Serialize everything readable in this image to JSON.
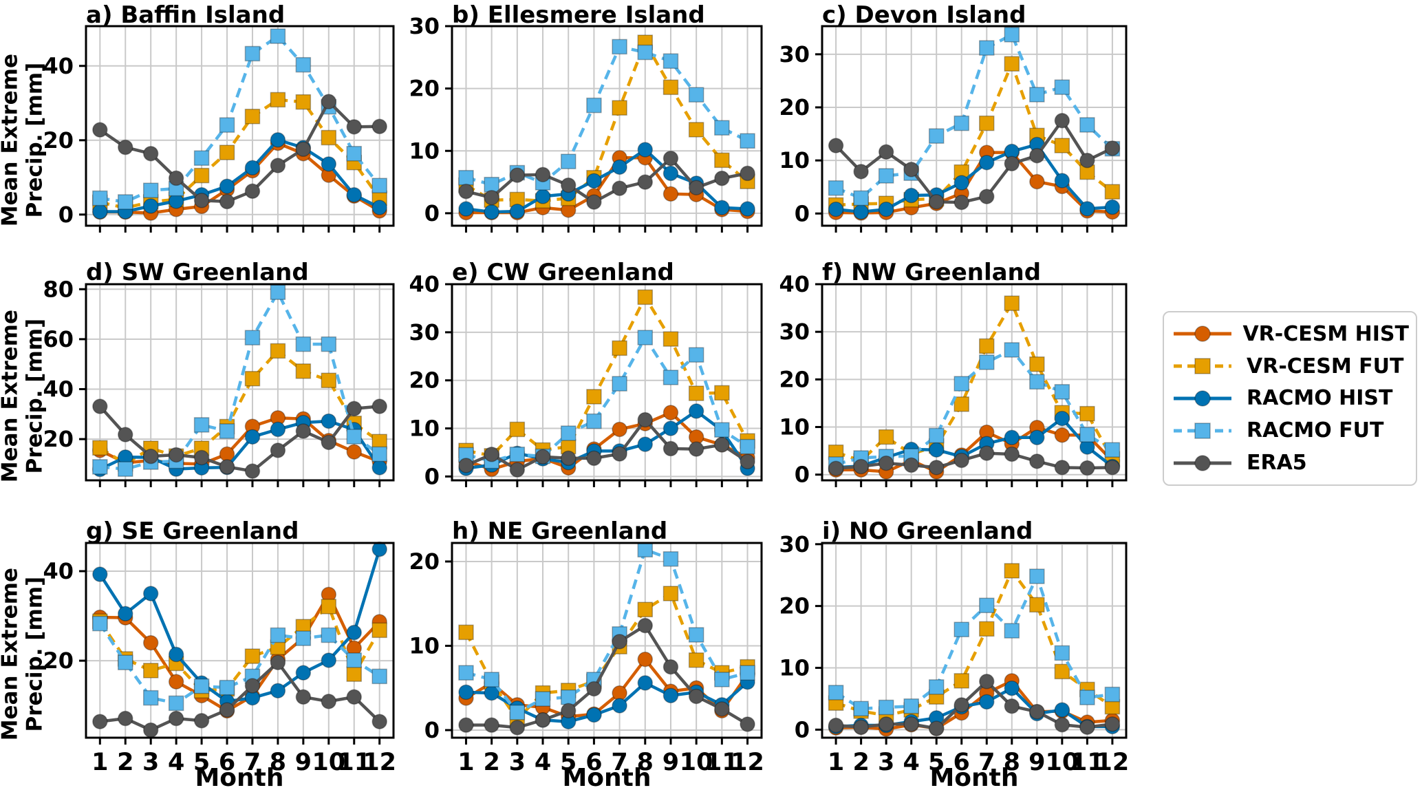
{
  "figure": {
    "ylabel": "Mean Extreme Precip. [mm]",
    "ylabel_line1": "Mean Extreme",
    "ylabel_line2": "Precip. [mm]",
    "xlabel": "Month",
    "months": [
      1,
      2,
      3,
      4,
      5,
      6,
      7,
      8,
      9,
      10,
      11,
      12
    ]
  },
  "series_meta": [
    {
      "name": "VR-CESM HIST",
      "color": "#D55E00",
      "style": "solid",
      "marker": "circle"
    },
    {
      "name": "VR-CESM FUT",
      "color": "#E69F00",
      "style": "dashed",
      "marker": "square"
    },
    {
      "name": "RACMO HIST",
      "color": "#0072B2",
      "style": "solid",
      "marker": "circle"
    },
    {
      "name": "RACMO FUT",
      "color": "#56B4E9",
      "style": "dashed",
      "marker": "square"
    },
    {
      "name": "ERA5",
      "color": "#545454",
      "style": "solid",
      "marker": "circle"
    }
  ],
  "chart_data": [
    {
      "type": "line",
      "title": "a) Baffin Island",
      "ylabel": "Mean Extreme Precip. [mm]",
      "xlabel": "",
      "categories": [
        1,
        2,
        3,
        4,
        5,
        6,
        7,
        8,
        9,
        10,
        11,
        12
      ],
      "ylim": [
        -3,
        50.7
      ],
      "yticks": [
        0,
        20,
        40
      ],
      "grid": true,
      "series": [
        {
          "name": "VR-CESM HIST",
          "values": [
            0.7,
            0.7,
            0.4,
            1.4,
            2.2,
            6.7,
            11.8,
            19.2,
            16.4,
            10.6,
            5.0,
            1.0
          ]
        },
        {
          "name": "VR-CESM FUT",
          "values": [
            3.3,
            1.8,
            3.4,
            4.1,
            10.5,
            16.7,
            26.4,
            30.9,
            30.3,
            20.7,
            14.0,
            4.4
          ]
        },
        {
          "name": "RACMO HIST",
          "values": [
            0.8,
            0.8,
            2.3,
            3.6,
            5.3,
            7.6,
            12.6,
            20.1,
            18.0,
            13.6,
            5.3,
            1.9
          ]
        },
        {
          "name": "RACMO FUT",
          "values": [
            4.4,
            3.4,
            6.5,
            7.0,
            15.2,
            24.1,
            43.3,
            48.0,
            40.3,
            29.0,
            16.4,
            7.8
          ]
        },
        {
          "name": "ERA5",
          "values": [
            22.8,
            18.1,
            16.4,
            9.8,
            3.8,
            3.5,
            6.3,
            13.2,
            17.6,
            30.4,
            23.6,
            23.7
          ]
        }
      ]
    },
    {
      "type": "line",
      "title": "b) Ellesmere Island",
      "ylabel": "",
      "xlabel": "",
      "categories": [
        1,
        2,
        3,
        4,
        5,
        6,
        7,
        8,
        9,
        10,
        11,
        12
      ],
      "ylim": [
        -2,
        30
      ],
      "yticks": [
        0,
        10,
        20,
        30
      ],
      "grid": true,
      "series": [
        {
          "name": "VR-CESM HIST",
          "values": [
            0.1,
            0.1,
            0.1,
            0.9,
            0.5,
            2.8,
            8.9,
            8.9,
            3.1,
            3.0,
            0.6,
            0.3
          ]
        },
        {
          "name": "VR-CESM FUT",
          "values": [
            4.5,
            2.1,
            2.2,
            2.0,
            2.4,
            5.7,
            16.9,
            27.4,
            20.2,
            13.4,
            8.5,
            5.1
          ]
        },
        {
          "name": "RACMO HIST",
          "values": [
            0.7,
            0.2,
            0.3,
            2.7,
            3.1,
            5.2,
            7.4,
            10.2,
            6.4,
            4.8,
            0.9,
            0.7
          ]
        },
        {
          "name": "RACMO FUT",
          "values": [
            5.7,
            4.6,
            6.5,
            4.9,
            8.3,
            17.3,
            26.7,
            25.8,
            24.4,
            19.0,
            13.7,
            11.6
          ]
        },
        {
          "name": "ERA5",
          "values": [
            3.5,
            2.5,
            6.1,
            6.2,
            4.5,
            1.8,
            4.0,
            5.0,
            8.8,
            4.1,
            5.6,
            6.4
          ]
        }
      ]
    },
    {
      "type": "line",
      "title": "c) Devon Island",
      "ylabel": "",
      "xlabel": "",
      "categories": [
        1,
        2,
        3,
        4,
        5,
        6,
        7,
        8,
        9,
        10,
        11,
        12
      ],
      "ylim": [
        -2.3,
        35.3
      ],
      "yticks": [
        0,
        10,
        20,
        30
      ],
      "grid": true,
      "series": [
        {
          "name": "VR-CESM HIST",
          "values": [
            0.2,
            0.1,
            0.2,
            1.1,
            1.9,
            3.8,
            11.5,
            11.5,
            6.0,
            5.1,
            0.5,
            0.3
          ]
        },
        {
          "name": "VR-CESM FUT",
          "values": [
            1.6,
            1.8,
            1.9,
            2.6,
            2.8,
            7.8,
            17.0,
            28.2,
            14.7,
            12.8,
            7.8,
            4.1
          ]
        },
        {
          "name": "RACMO HIST",
          "values": [
            0.8,
            0.3,
            0.8,
            3.4,
            3.5,
            5.8,
            9.6,
            11.7,
            13.0,
            6.2,
            0.9,
            1.2
          ]
        },
        {
          "name": "RACMO FUT",
          "values": [
            4.8,
            2.9,
            7.1,
            7.6,
            14.6,
            17.0,
            31.2,
            33.7,
            22.4,
            23.8,
            16.7,
            12.2
          ]
        },
        {
          "name": "ERA5",
          "values": [
            12.8,
            7.9,
            11.6,
            8.3,
            2.2,
            2.1,
            3.2,
            9.4,
            10.9,
            17.5,
            10.0,
            12.3
          ]
        }
      ]
    },
    {
      "type": "line",
      "title": "d) SW Greenland",
      "ylabel": "Mean Extreme Precip. [mm]",
      "xlabel": "",
      "categories": [
        1,
        2,
        3,
        4,
        5,
        6,
        7,
        8,
        9,
        10,
        11,
        12
      ],
      "ylim": [
        3.5,
        82
      ],
      "yticks": [
        20,
        40,
        60,
        80
      ],
      "grid": true,
      "series": [
        {
          "name": "VR-CESM HIST",
          "values": [
            15.5,
            10.5,
            11.5,
            10.3,
            10.0,
            14.0,
            25.1,
            28.5,
            28.1,
            19.4,
            14.9,
            11.0
          ]
        },
        {
          "name": "VR-CESM FUT",
          "values": [
            16.5,
            10.1,
            16.3,
            13.2,
            16.3,
            25.0,
            44.2,
            55.3,
            47.2,
            43.5,
            26.3,
            19.0
          ]
        },
        {
          "name": "RACMO HIST",
          "values": [
            7.9,
            12.8,
            12.7,
            8.0,
            8.5,
            8.7,
            20.9,
            23.9,
            26.6,
            27.2,
            23.8,
            8.6
          ]
        },
        {
          "name": "RACMO FUT",
          "values": [
            8.9,
            8.0,
            10.8,
            11.2,
            25.7,
            23.2,
            60.6,
            78.8,
            58.0,
            58.0,
            21.0,
            14.0
          ]
        },
        {
          "name": "ERA5",
          "values": [
            33.1,
            21.8,
            13.1,
            13.7,
            12.6,
            8.9,
            7.2,
            15.5,
            23.2,
            18.7,
            32.2,
            33.1
          ]
        }
      ]
    },
    {
      "type": "line",
      "title": "e) CW Greenland",
      "ylabel": "",
      "xlabel": "",
      "categories": [
        1,
        2,
        3,
        4,
        5,
        6,
        7,
        8,
        9,
        10,
        11,
        12
      ],
      "ylim": [
        -0.8,
        40
      ],
      "yticks": [
        0,
        10,
        20,
        30,
        40
      ],
      "grid": true,
      "series": [
        {
          "name": "VR-CESM HIST",
          "values": [
            3.2,
            1.5,
            3.1,
            3.8,
            1.8,
            5.7,
            9.8,
            11.0,
            13.3,
            8.2,
            6.6,
            3.9
          ]
        },
        {
          "name": "VR-CESM FUT",
          "values": [
            5.4,
            4.3,
            9.8,
            5.5,
            6.2,
            16.6,
            26.7,
            37.3,
            28.6,
            17.3,
            17.4,
            7.4
          ]
        },
        {
          "name": "RACMO HIST",
          "values": [
            1.7,
            2.4,
            4.8,
            3.7,
            2.9,
            5.3,
            5.3,
            6.7,
            10.0,
            13.6,
            9.6,
            1.7
          ]
        },
        {
          "name": "RACMO FUT",
          "values": [
            4.5,
            3.2,
            4.6,
            4.2,
            9.0,
            11.5,
            19.3,
            28.9,
            20.6,
            25.3,
            9.7,
            6.2
          ]
        },
        {
          "name": "ERA5",
          "values": [
            2.3,
            4.6,
            1.4,
            4.1,
            3.8,
            3.8,
            4.7,
            11.8,
            5.8,
            5.7,
            6.6,
            3.1
          ]
        }
      ]
    },
    {
      "type": "line",
      "title": "f) NW Greenland",
      "ylabel": "",
      "xlabel": "",
      "categories": [
        1,
        2,
        3,
        4,
        5,
        6,
        7,
        8,
        9,
        10,
        11,
        12
      ],
      "ylim": [
        -1.2,
        40
      ],
      "yticks": [
        0,
        10,
        20,
        30,
        40
      ],
      "grid": true,
      "series": [
        {
          "name": "VR-CESM HIST",
          "values": [
            1.0,
            1.0,
            0.6,
            3.0,
            0.6,
            4.1,
            8.9,
            6.5,
            9.9,
            8.3,
            8.3,
            2.9
          ]
        },
        {
          "name": "VR-CESM FUT",
          "values": [
            4.7,
            2.9,
            7.9,
            4.3,
            6.0,
            14.8,
            27.0,
            36.0,
            23.2,
            13.0,
            12.8,
            3.3
          ]
        },
        {
          "name": "RACMO HIST",
          "values": [
            1.5,
            1.8,
            3.6,
            5.3,
            5.2,
            3.8,
            6.5,
            7.8,
            7.8,
            11.8,
            5.8,
            1.7
          ]
        },
        {
          "name": "RACMO FUT",
          "values": [
            2.2,
            3.5,
            3.8,
            3.9,
            8.2,
            19.1,
            23.6,
            26.2,
            19.5,
            17.4,
            8.4,
            5.2
          ]
        },
        {
          "name": "ERA5",
          "values": [
            1.3,
            1.7,
            2.4,
            2.0,
            1.5,
            3.0,
            4.5,
            4.3,
            2.8,
            1.5,
            1.4,
            1.5
          ]
        }
      ]
    },
    {
      "type": "line",
      "title": "g) SE Greenland",
      "ylabel": "Mean Extreme Precip. [mm]",
      "xlabel": "Month",
      "categories": [
        1,
        2,
        3,
        4,
        5,
        6,
        7,
        8,
        9,
        10,
        11,
        12
      ],
      "ylim": [
        2.8,
        46.3
      ],
      "yticks": [
        20,
        40
      ],
      "grid": true,
      "series": [
        {
          "name": "VR-CESM HIST",
          "values": [
            29.7,
            29.6,
            24.0,
            15.3,
            12.2,
            8.8,
            12.1,
            20.3,
            25.1,
            34.8,
            22.8,
            28.7
          ]
        },
        {
          "name": "VR-CESM FUT",
          "values": [
            28.8,
            20.4,
            17.8,
            19.4,
            13.3,
            13.7,
            21.0,
            23.0,
            27.6,
            32.1,
            17.0,
            26.8
          ]
        },
        {
          "name": "RACMO HIST",
          "values": [
            39.3,
            30.5,
            35.0,
            21.4,
            15.0,
            10.9,
            11.7,
            13.3,
            17.3,
            20.1,
            26.3,
            44.9
          ]
        },
        {
          "name": "RACMO FUT",
          "values": [
            28.3,
            19.6,
            11.7,
            10.5,
            14.3,
            14.0,
            16.5,
            25.7,
            25.0,
            25.7,
            20.1,
            16.5
          ]
        },
        {
          "name": "ERA5",
          "values": [
            6.4,
            7.1,
            4.5,
            7.1,
            6.6,
            9.0,
            14.4,
            19.6,
            11.9,
            10.9,
            11.9,
            6.4
          ]
        }
      ]
    },
    {
      "type": "line",
      "title": "h) NE Greenland",
      "ylabel": "",
      "xlabel": "Month",
      "categories": [
        1,
        2,
        3,
        4,
        5,
        6,
        7,
        8,
        9,
        10,
        11,
        12
      ],
      "ylim": [
        -0.9,
        22.2
      ],
      "yticks": [
        0,
        10,
        20
      ],
      "grid": true,
      "series": [
        {
          "name": "VR-CESM HIST",
          "values": [
            3.8,
            5.6,
            3.0,
            2.7,
            1.6,
            1.9,
            4.4,
            8.4,
            4.6,
            5.0,
            2.3,
            6.6
          ]
        },
        {
          "name": "VR-CESM FUT",
          "values": [
            11.6,
            5.7,
            1.3,
            4.4,
            4.7,
            5.8,
            9.9,
            14.3,
            16.2,
            8.3,
            6.8,
            7.5
          ]
        },
        {
          "name": "RACMO HIST",
          "values": [
            4.5,
            4.4,
            2.6,
            1.2,
            1.0,
            1.8,
            2.9,
            5.6,
            4.1,
            4.5,
            3.0,
            5.7
          ]
        },
        {
          "name": "RACMO FUT",
          "values": [
            6.8,
            6.0,
            2.1,
            3.7,
            3.9,
            6.0,
            11.4,
            21.4,
            20.3,
            11.3,
            6.0,
            6.8
          ]
        },
        {
          "name": "ERA5",
          "values": [
            0.6,
            0.6,
            0.3,
            1.2,
            2.3,
            4.9,
            10.5,
            12.4,
            7.5,
            4.0,
            2.5,
            0.7
          ]
        }
      ]
    },
    {
      "type": "line",
      "title": "i) NO Greenland",
      "ylabel": "",
      "xlabel": "Month",
      "categories": [
        1,
        2,
        3,
        4,
        5,
        6,
        7,
        8,
        9,
        10,
        11,
        12
      ],
      "ylim": [
        -1.3,
        30.2
      ],
      "yticks": [
        0,
        10,
        20,
        30
      ],
      "grid": true,
      "series": [
        {
          "name": "VR-CESM HIST",
          "values": [
            0.3,
            0.4,
            0.1,
            0.8,
            0.2,
            2.7,
            5.9,
            7.9,
            2.9,
            3.0,
            1.2,
            1.5
          ]
        },
        {
          "name": "VR-CESM FUT",
          "values": [
            4.3,
            3.0,
            2.3,
            3.2,
            5.3,
            7.9,
            16.3,
            25.7,
            20.2,
            9.4,
            6.5,
            3.7
          ]
        },
        {
          "name": "RACMO HIST",
          "values": [
            0.5,
            0.7,
            0.7,
            1.3,
            1.9,
            3.7,
            4.5,
            6.7,
            2.6,
            3.2,
            0.5,
            0.5
          ]
        },
        {
          "name": "RACMO FUT",
          "values": [
            6.0,
            3.4,
            3.6,
            3.8,
            6.9,
            16.2,
            20.1,
            16.0,
            24.8,
            12.4,
            5.2,
            5.7
          ]
        },
        {
          "name": "ERA5",
          "values": [
            0.7,
            0.4,
            0.9,
            0.9,
            0.2,
            4.0,
            7.8,
            3.8,
            2.9,
            0.8,
            0.4,
            0.9
          ]
        }
      ]
    }
  ]
}
